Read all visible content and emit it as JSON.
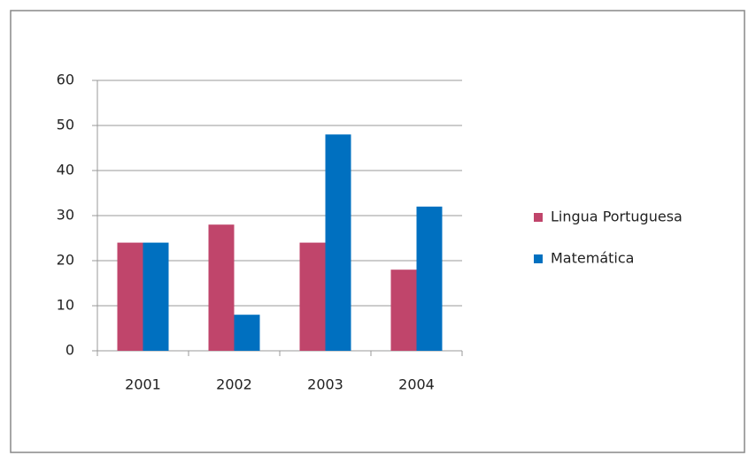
{
  "chart_data": {
    "type": "bar",
    "categories": [
      "2001",
      "2002",
      "2003",
      "2004"
    ],
    "series": [
      {
        "name": "Lingua Portuguesa",
        "color": "#c0456b",
        "values": [
          24,
          28,
          24,
          18
        ]
      },
      {
        "name": "Matemática",
        "color": "#0070c0",
        "values": [
          24,
          8,
          48,
          32
        ]
      }
    ],
    "ylim": [
      0,
      60
    ],
    "yticks": [
      0,
      10,
      20,
      30,
      40,
      50,
      60
    ],
    "grid": true,
    "legend": "right"
  }
}
